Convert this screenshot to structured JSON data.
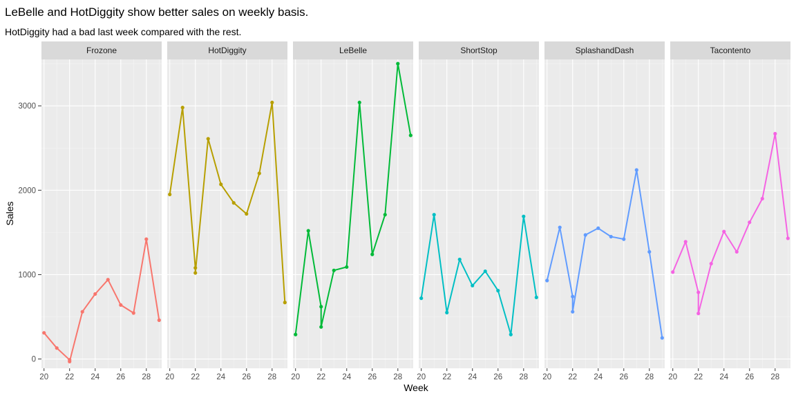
{
  "title": "LeBelle and HotDiggity show better sales on weekly basis.",
  "subtitle": "HotDiggity had a bad last week compared with the rest.",
  "chart_data": {
    "type": "line",
    "faceted": true,
    "xlabel": "Week",
    "ylabel": "Sales",
    "xlim": [
      19.8,
      29.2
    ],
    "ylim": [
      -110,
      3550
    ],
    "x_ticks": [
      20,
      22,
      24,
      26,
      28
    ],
    "y_ticks": [
      0,
      1000,
      2000,
      3000
    ],
    "grid": true,
    "legend": "none",
    "facets": [
      {
        "name": "Frozone",
        "color": "#F8766D",
        "points": [
          [
            20,
            310
          ],
          [
            21,
            130
          ],
          [
            22,
            -10
          ],
          [
            22,
            -30
          ],
          [
            23,
            560
          ],
          [
            24,
            770
          ],
          [
            25,
            940
          ],
          [
            26,
            640
          ],
          [
            27,
            545
          ],
          [
            28,
            1420
          ],
          [
            29,
            460
          ]
        ]
      },
      {
        "name": "HotDiggity",
        "color": "#B79F00",
        "points": [
          [
            20,
            1950
          ],
          [
            21,
            2980
          ],
          [
            22,
            1080
          ],
          [
            22,
            1020
          ],
          [
            23,
            2610
          ],
          [
            24,
            2070
          ],
          [
            25,
            1850
          ],
          [
            26,
            1720
          ],
          [
            27,
            2200
          ],
          [
            28,
            3040
          ],
          [
            29,
            670
          ]
        ]
      },
      {
        "name": "LeBelle",
        "color": "#00BA38",
        "points": [
          [
            20,
            290
          ],
          [
            21,
            1520
          ],
          [
            22,
            620
          ],
          [
            22,
            380
          ],
          [
            23,
            1050
          ],
          [
            24,
            1090
          ],
          [
            25,
            3040
          ],
          [
            26,
            1240
          ],
          [
            27,
            1710
          ],
          [
            28,
            3500
          ],
          [
            29,
            2650
          ]
        ]
      },
      {
        "name": "ShortStop",
        "color": "#00BFC4",
        "points": [
          [
            20,
            720
          ],
          [
            21,
            1710
          ],
          [
            22,
            550
          ],
          [
            23,
            1180
          ],
          [
            24,
            870
          ],
          [
            25,
            1040
          ],
          [
            26,
            810
          ],
          [
            27,
            290
          ],
          [
            28,
            1690
          ],
          [
            29,
            730
          ]
        ]
      },
      {
        "name": "SplashandDash",
        "color": "#619CFF",
        "points": [
          [
            20,
            930
          ],
          [
            21,
            1560
          ],
          [
            22,
            740
          ],
          [
            22,
            560
          ],
          [
            23,
            1470
          ],
          [
            24,
            1550
          ],
          [
            25,
            1450
          ],
          [
            26,
            1420
          ],
          [
            27,
            2240
          ],
          [
            28,
            1270
          ],
          [
            29,
            250
          ]
        ]
      },
      {
        "name": "Tacontento",
        "color": "#F564E3",
        "points": [
          [
            20,
            1030
          ],
          [
            21,
            1390
          ],
          [
            22,
            790
          ],
          [
            22,
            540
          ],
          [
            23,
            1130
          ],
          [
            24,
            1510
          ],
          [
            25,
            1270
          ],
          [
            26,
            1620
          ],
          [
            27,
            1900
          ],
          [
            28,
            2670
          ],
          [
            29,
            1430
          ]
        ]
      }
    ]
  }
}
